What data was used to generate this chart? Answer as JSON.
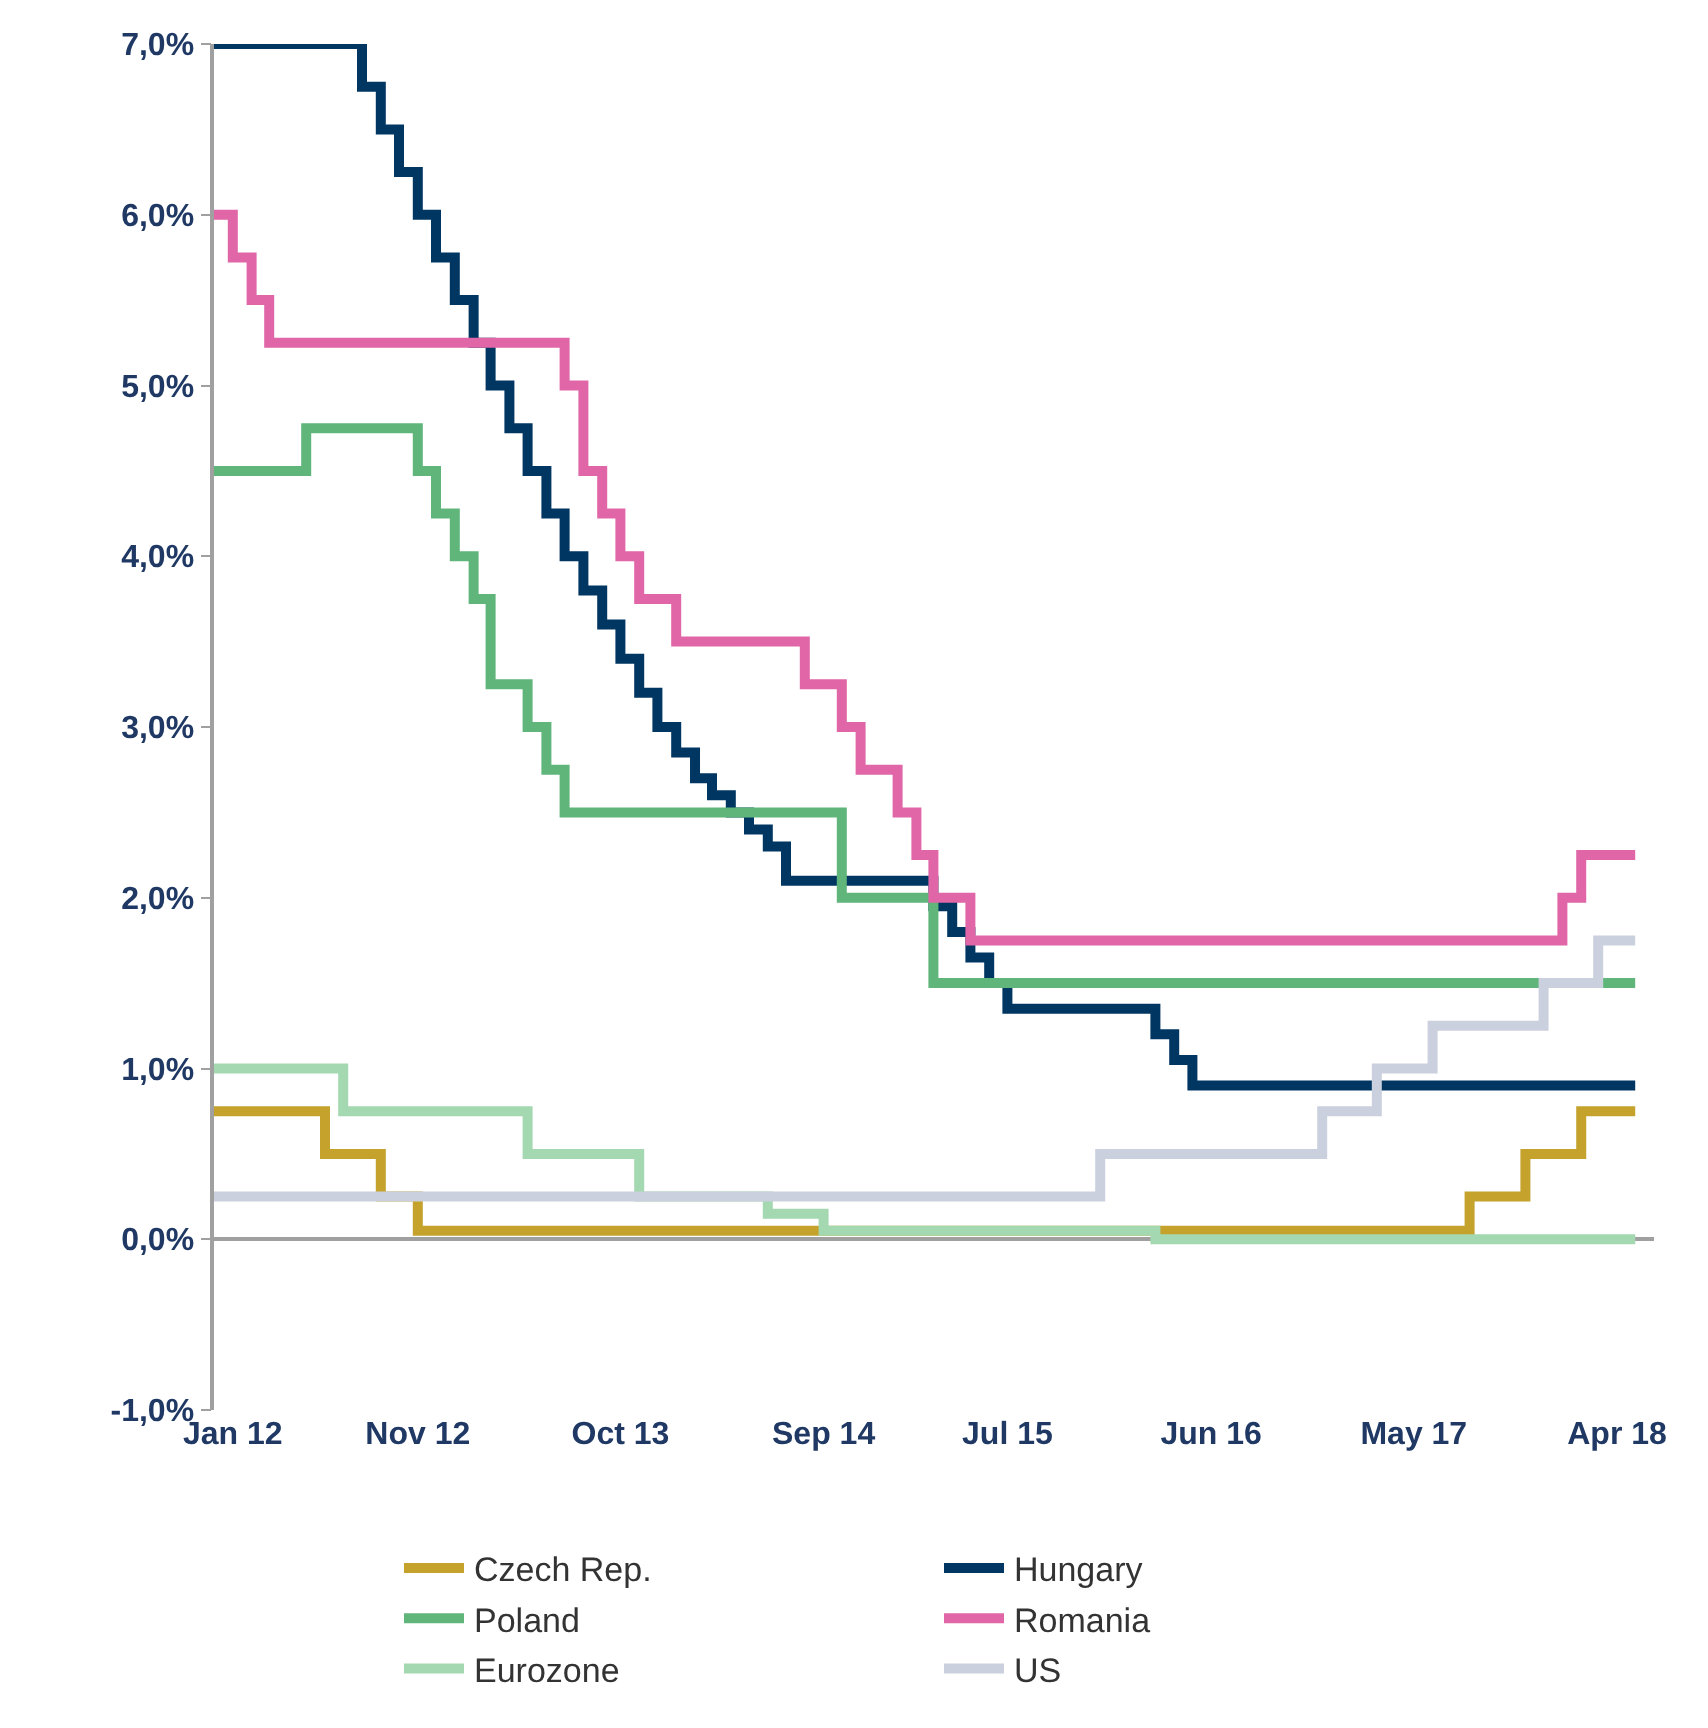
{
  "chart_data": {
    "type": "step",
    "series": [
      {
        "name": "Czech Rep.",
        "color": "#c4a22c",
        "x": [
          "2011-12",
          "2012-06",
          "2012-09",
          "2012-11",
          "2017-08",
          "2017-11",
          "2018-02",
          "2018-05"
        ],
        "values": [
          0.75,
          0.5,
          0.25,
          0.05,
          0.25,
          0.5,
          0.75,
          0.75
        ]
      },
      {
        "name": "Hungary",
        "color": "#003662",
        "x": [
          "2011-12",
          "2012-08",
          "2012-09",
          "2012-10",
          "2012-11",
          "2012-12",
          "2013-01",
          "2013-02",
          "2013-03",
          "2013-04",
          "2013-05",
          "2013-06",
          "2013-07",
          "2013-08",
          "2013-09",
          "2013-10",
          "2013-11",
          "2013-12",
          "2014-01",
          "2014-02",
          "2014-03",
          "2014-04",
          "2014-05",
          "2014-06",
          "2014-07",
          "2015-03",
          "2015-04",
          "2015-05",
          "2015-06",
          "2015-07",
          "2016-03",
          "2016-04",
          "2016-05",
          "2018-05"
        ],
        "values": [
          7.0,
          6.75,
          6.5,
          6.25,
          6.0,
          5.75,
          5.5,
          5.25,
          5.0,
          4.75,
          4.5,
          4.25,
          4.0,
          3.8,
          3.6,
          3.4,
          3.2,
          3.0,
          2.85,
          2.7,
          2.6,
          2.5,
          2.4,
          2.3,
          2.1,
          1.95,
          1.8,
          1.65,
          1.5,
          1.35,
          1.2,
          1.05,
          0.9,
          0.9
        ]
      },
      {
        "name": "Poland",
        "color": "#60b67a",
        "x": [
          "2011-12",
          "2012-05",
          "2012-11",
          "2012-12",
          "2013-01",
          "2013-02",
          "2013-03",
          "2013-05",
          "2013-06",
          "2013-07",
          "2014-10",
          "2015-03",
          "2018-05"
        ],
        "values": [
          4.5,
          4.75,
          4.5,
          4.25,
          4.0,
          3.75,
          3.25,
          3.0,
          2.75,
          2.5,
          2.0,
          1.5,
          1.5
        ]
      },
      {
        "name": "Romania",
        "color": "#e066a8",
        "x": [
          "2011-12",
          "2012-01",
          "2012-02",
          "2012-03",
          "2013-07",
          "2013-08",
          "2013-09",
          "2013-10",
          "2013-11",
          "2014-01",
          "2014-08",
          "2014-10",
          "2014-11",
          "2015-01",
          "2015-02",
          "2015-03",
          "2015-05",
          "2018-01",
          "2018-02",
          "2018-05"
        ],
        "values": [
          6.0,
          5.75,
          5.5,
          5.25,
          5.0,
          4.5,
          4.25,
          4.0,
          3.75,
          3.5,
          3.25,
          3.0,
          2.75,
          2.5,
          2.25,
          2.0,
          1.75,
          2.0,
          2.25,
          2.25
        ]
      },
      {
        "name": "Eurozone",
        "color": "#a3d8b0",
        "x": [
          "2011-12",
          "2012-07",
          "2013-05",
          "2013-11",
          "2014-06",
          "2014-09",
          "2016-03",
          "2018-05"
        ],
        "values": [
          1.0,
          0.75,
          0.5,
          0.25,
          0.15,
          0.05,
          0.0,
          0.0
        ]
      },
      {
        "name": "US",
        "color": "#cbd0de",
        "x": [
          "2011-12",
          "2015-12",
          "2016-12",
          "2017-03",
          "2017-06",
          "2017-12",
          "2018-03",
          "2018-05"
        ],
        "values": [
          0.25,
          0.5,
          0.75,
          1.0,
          1.25,
          1.5,
          1.75,
          1.75
        ]
      }
    ],
    "xlim": [
      "2011-12",
      "2018-06"
    ],
    "xticks": [
      {
        "value": "2012-01",
        "label": "Jan 12"
      },
      {
        "value": "2012-11",
        "label": "Nov 12"
      },
      {
        "value": "2013-10",
        "label": "Oct 13"
      },
      {
        "value": "2014-09",
        "label": "Sep 14"
      },
      {
        "value": "2015-07",
        "label": "Jul 15"
      },
      {
        "value": "2016-06",
        "label": "Jun 16"
      },
      {
        "value": "2017-05",
        "label": "May 17"
      },
      {
        "value": "2018-04",
        "label": "Apr 18"
      }
    ],
    "ylim": [
      -1,
      7
    ],
    "yticks": [
      {
        "value": -1,
        "label": "-1,0%"
      },
      {
        "value": 0,
        "label": "0,0%"
      },
      {
        "value": 1,
        "label": "1,0%"
      },
      {
        "value": 2,
        "label": "2,0%"
      },
      {
        "value": 3,
        "label": "3,0%"
      },
      {
        "value": 4,
        "label": "4,0%"
      },
      {
        "value": 5,
        "label": "5,0%"
      },
      {
        "value": 6,
        "label": "6,0%"
      },
      {
        "value": 7,
        "label": "7,0%"
      }
    ],
    "legend": "bottom",
    "marker": "none",
    "line_style": "solid"
  }
}
